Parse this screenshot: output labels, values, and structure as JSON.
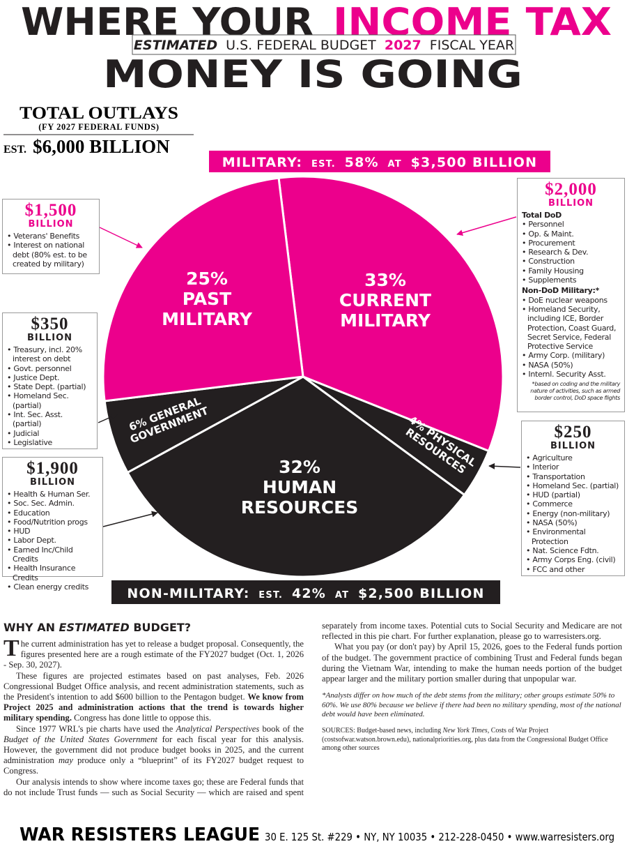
{
  "header": {
    "title_a": "WHERE YOUR",
    "title_b": "INCOME TAX",
    "title_c": "MONEY IS GOING",
    "subtitle": [
      "ESTIMATED",
      "U.S. FEDERAL BUDGET",
      "2027",
      "FISCAL YEAR"
    ]
  },
  "total": {
    "title": "TOTAL OUTLAYS",
    "subtitle": "(FY 2027 FEDERAL FUNDS)",
    "est": "EST.",
    "amount": "$6,000 BILLION"
  },
  "banners": {
    "military": [
      "MILITARY:",
      "EST.",
      "58%",
      "AT",
      "$3,500 BILLION"
    ],
    "non_military": [
      "NON-MILITARY:",
      "EST.",
      "42%",
      "AT",
      "$2,500 BILLION"
    ]
  },
  "chart_data": {
    "type": "pie",
    "categories": [
      "CURRENT MILITARY",
      "PHYSICAL RESOURCES",
      "HUMAN RESOURCES",
      "GENERAL GOVERNMENT",
      "PAST MILITARY"
    ],
    "values": [
      33,
      4,
      32,
      6,
      25
    ],
    "value_labels": [
      "33%",
      "4%",
      "32%",
      "6%",
      "25%"
    ],
    "colors": [
      "#ec008c",
      "#231f20",
      "#231f20",
      "#231f20",
      "#ec008c"
    ]
  },
  "boxes": {
    "past": {
      "amount": "$1,500",
      "unit": "BILLION",
      "items": [
        "Veterans' Benefits",
        "Interest on national debt (80% est. to be created by military)"
      ]
    },
    "current": {
      "amount": "$2,000",
      "unit": "BILLION",
      "sections": [
        {
          "heading": "Total DoD",
          "items": [
            "Personnel",
            "Op. & Maint.",
            "Procurement",
            "Research & Dev.",
            "Construction",
            "Family Housing",
            "Supplements"
          ]
        },
        {
          "heading": "Non-DoD Military:*",
          "items": [
            "DoE nuclear weapons",
            "Homeland Security, including ICE, Border Protection, Coast Guard, Secret Service, Federal Protective Service",
            "Army Corp. (military)",
            "NASA (50%)",
            "Internl. Security Asst."
          ]
        }
      ],
      "note": "*based on coding and the military nature of activities, such as armed border control, DoD space flights"
    },
    "general": {
      "amount": "$350",
      "unit": "BILLION",
      "items": [
        "Treasury, incl. 20% interest on debt",
        "Govt. personnel",
        "Justice Dept.",
        "State Dept. (partial)",
        "Homeland Sec. (partial)",
        "Int. Sec. Asst. (partial)",
        "Judicial",
        "Legislative"
      ]
    },
    "physical": {
      "amount": "$250",
      "unit": "BILLION",
      "items": [
        "Agriculture",
        "Interior",
        "Transportation",
        "Homeland Sec. (partial)",
        "HUD (partial)",
        "Commerce",
        "Energy (non-military)",
        "NASA (50%)",
        "Environmental Protection",
        "Nat. Science Fdtn.",
        "Army Corps Eng. (civil)",
        "FCC and other"
      ]
    },
    "human": {
      "amount": "$1,900",
      "unit": "BILLION",
      "items": [
        "Health & Human Ser.",
        "Soc. Sec. Admin.",
        "Education",
        "Food/Nutrition progs",
        "HUD",
        "Labor Dept.",
        "Earned Inc/Child Credits",
        "Health Insurance Credits",
        "Clean energy credits"
      ]
    }
  },
  "article": {
    "heading": [
      "WHY AN",
      "ESTIMATED",
      "BUDGET?"
    ],
    "paragraphs": [
      [
        "The current administration has yet to release a budget proposal. Consequently, the figures presented here are a rough estimate of the FY2027 budget (Oct. 1, 2026 - Sep. 30, 2027)."
      ],
      [
        "These figures are projected estimates based on past analyses, Feb. 2026 Congressional Budget Office analysis, and recent administration statements, such as the President's intention to add $600 billion to the Pentagon budget.",
        "We know from Project 2025 and administration actions that the trend is towards higher military spending.",
        "Congress has done little to oppose this."
      ],
      [
        "Since 1977 WRL's pie charts have used the",
        "Analytical Perspectives",
        "book of the",
        "Budget of the United States Government",
        "for each fiscal year for this analysis. However, the government did not produce budget books in 2025, and the current administration",
        "may",
        "produce only a “blueprint” of its FY2027 budget request to Congress."
      ],
      [
        "Our analysis intends to show where income taxes go; these are Federal funds that do not include Trust funds — such as Social Security — which are raised and spent separately from income taxes. Potential cuts to Social Security and Medicare are not reflected in this pie chart. For further explanation, please go to warresisters.org."
      ],
      [
        "What you pay (or don't pay) by April 15, 2026, goes to the Federal funds portion of the budget. The government practice of combining Trust and Federal funds began during the Vietnam War, intending to make the human needs portion of the budget appear larger and the military portion smaller during that unpopular war."
      ]
    ],
    "note": "*Analysts differ on how much of the debt stems from the military; other groups estimate 50% to 60%. We use 80% because we believe if there had been no military spending, most of the national debt would have been eliminated.",
    "sources": [
      "SOURCES:",
      "Budget-based news, including",
      "New York Times",
      ", Costs of War Project (costsofwar.watson.brown.edu), nationalpriorities.org, plus data from the Congressional Budget Office among other sources"
    ]
  },
  "footer": {
    "org": "WAR RESISTERS LEAGUE",
    "contact": "30 E. 125 St. #229 • NY, NY 10035 • 212-228-0450 • www.warresisters.org"
  }
}
